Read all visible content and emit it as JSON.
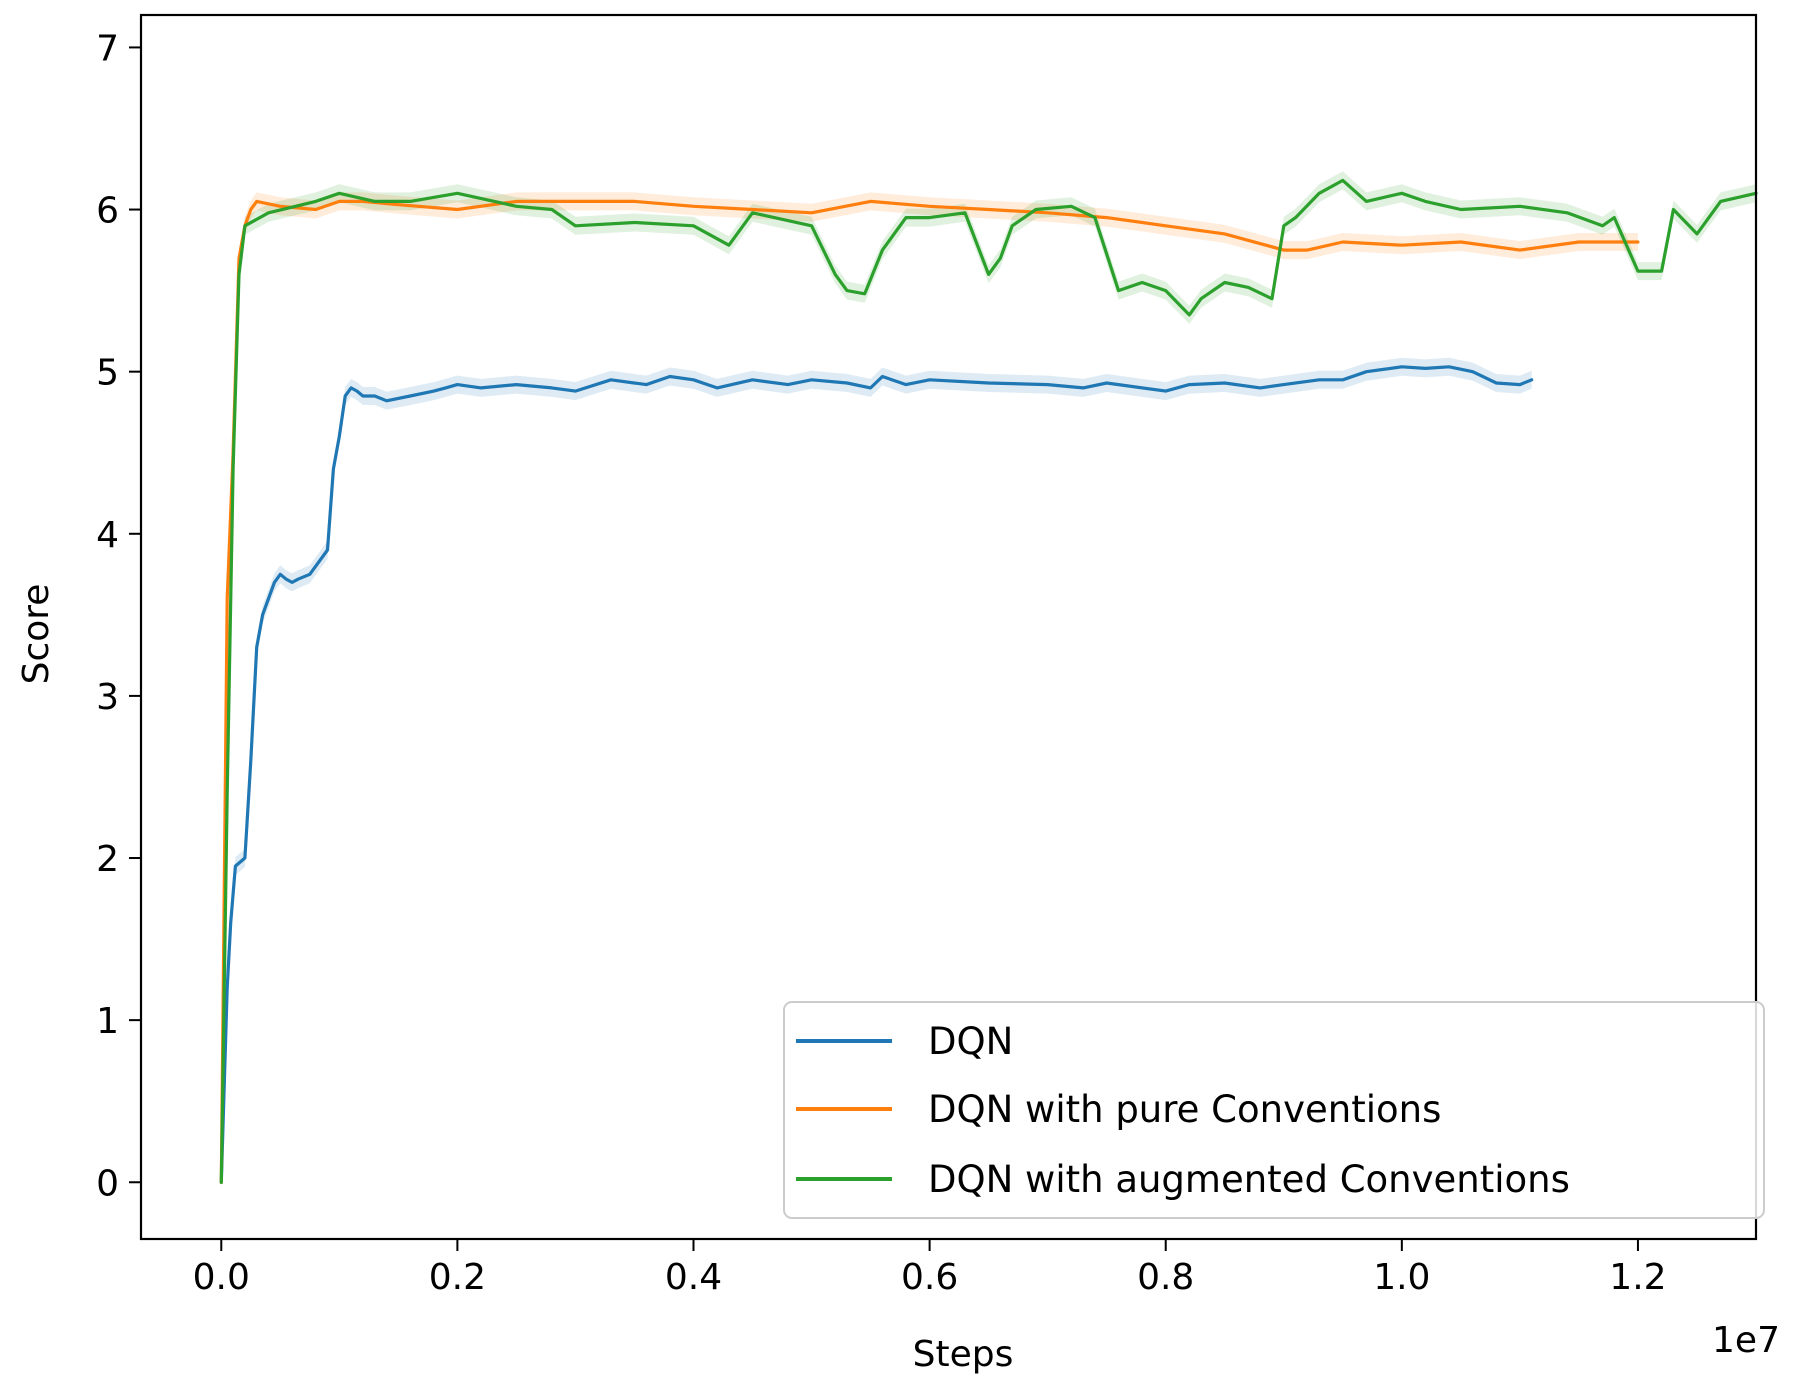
{
  "chart_data": {
    "type": "line",
    "title": "",
    "xlabel": "Steps",
    "ylabel": "Score",
    "x_offset_label": "1e7",
    "xlim": [
      -0.068,
      1.3
    ],
    "ylim": [
      -0.35,
      7.2
    ],
    "x_ticks": [
      0.0,
      0.2,
      0.4,
      0.6,
      0.8,
      1.0,
      1.2
    ],
    "x_tick_labels": [
      "0.0",
      "0.2",
      "0.4",
      "0.6",
      "0.8",
      "1.0",
      "1.2"
    ],
    "y_ticks": [
      0,
      1,
      2,
      3,
      4,
      5,
      6,
      7
    ],
    "y_tick_labels": [
      "0",
      "1",
      "2",
      "3",
      "4",
      "5",
      "6",
      "7"
    ],
    "grid": false,
    "legend_position": "bottom-right",
    "series": [
      {
        "name": "DQN",
        "color": "#1f77b4",
        "x": [
          0.0,
          0.005,
          0.008,
          0.012,
          0.02,
          0.025,
          0.03,
          0.035,
          0.045,
          0.05,
          0.055,
          0.06,
          0.065,
          0.075,
          0.09,
          0.095,
          0.1,
          0.105,
          0.11,
          0.115,
          0.12,
          0.13,
          0.14,
          0.16,
          0.18,
          0.19,
          0.2,
          0.22,
          0.25,
          0.28,
          0.3,
          0.33,
          0.36,
          0.38,
          0.4,
          0.42,
          0.45,
          0.48,
          0.5,
          0.53,
          0.55,
          0.56,
          0.58,
          0.6,
          0.65,
          0.7,
          0.73,
          0.75,
          0.8,
          0.82,
          0.85,
          0.88,
          0.9,
          0.93,
          0.95,
          0.97,
          1.0,
          1.02,
          1.04,
          1.06,
          1.08,
          1.1,
          1.11
        ],
        "y": [
          0.0,
          1.2,
          1.6,
          1.95,
          2.0,
          2.6,
          3.3,
          3.5,
          3.7,
          3.75,
          3.72,
          3.7,
          3.72,
          3.75,
          3.9,
          4.4,
          4.6,
          4.85,
          4.9,
          4.88,
          4.85,
          4.85,
          4.82,
          4.85,
          4.88,
          4.9,
          4.92,
          4.9,
          4.92,
          4.9,
          4.88,
          4.95,
          4.92,
          4.97,
          4.95,
          4.9,
          4.95,
          4.92,
          4.95,
          4.93,
          4.9,
          4.97,
          4.92,
          4.95,
          4.93,
          4.92,
          4.9,
          4.93,
          4.88,
          4.92,
          4.93,
          4.9,
          4.92,
          4.95,
          4.95,
          5.0,
          5.03,
          5.02,
          5.03,
          5.0,
          4.93,
          4.92,
          4.95
        ]
      },
      {
        "name": "DQN with pure Conventions",
        "color": "#ff7f0e",
        "x": [
          0.0,
          0.005,
          0.01,
          0.015,
          0.02,
          0.025,
          0.03,
          0.05,
          0.08,
          0.1,
          0.12,
          0.15,
          0.2,
          0.25,
          0.3,
          0.35,
          0.4,
          0.45,
          0.5,
          0.55,
          0.6,
          0.65,
          0.7,
          0.75,
          0.8,
          0.85,
          0.9,
          0.92,
          0.95,
          1.0,
          1.05,
          1.1,
          1.15,
          1.2
        ],
        "y": [
          0.0,
          3.6,
          4.5,
          5.7,
          5.9,
          6.0,
          6.05,
          6.02,
          6.0,
          6.05,
          6.05,
          6.03,
          6.0,
          6.05,
          6.05,
          6.05,
          6.02,
          6.0,
          5.98,
          6.05,
          6.02,
          6.0,
          5.98,
          5.95,
          5.9,
          5.85,
          5.75,
          5.75,
          5.8,
          5.78,
          5.8,
          5.75,
          5.8,
          5.8
        ]
      },
      {
        "name": "DQN with augmented Conventions",
        "color": "#2ca02c",
        "x": [
          0.0,
          0.005,
          0.01,
          0.015,
          0.02,
          0.04,
          0.08,
          0.1,
          0.13,
          0.16,
          0.2,
          0.25,
          0.28,
          0.3,
          0.35,
          0.4,
          0.43,
          0.45,
          0.5,
          0.52,
          0.53,
          0.545,
          0.56,
          0.58,
          0.6,
          0.63,
          0.65,
          0.66,
          0.67,
          0.69,
          0.72,
          0.74,
          0.76,
          0.78,
          0.8,
          0.82,
          0.83,
          0.85,
          0.87,
          0.89,
          0.9,
          0.91,
          0.93,
          0.95,
          0.97,
          1.0,
          1.02,
          1.05,
          1.1,
          1.14,
          1.17,
          1.18,
          1.2,
          1.22,
          1.23,
          1.25,
          1.27,
          1.3
        ],
        "y": [
          0.0,
          2.4,
          4.4,
          5.6,
          5.9,
          5.98,
          6.05,
          6.1,
          6.05,
          6.05,
          6.1,
          6.02,
          6.0,
          5.9,
          5.92,
          5.9,
          5.78,
          5.98,
          5.9,
          5.6,
          5.5,
          5.48,
          5.75,
          5.95,
          5.95,
          5.98,
          5.6,
          5.7,
          5.9,
          6.0,
          6.02,
          5.95,
          5.5,
          5.55,
          5.5,
          5.35,
          5.45,
          5.55,
          5.52,
          5.45,
          5.9,
          5.95,
          6.1,
          6.18,
          6.05,
          6.1,
          6.05,
          6.0,
          6.02,
          5.98,
          5.9,
          5.95,
          5.62,
          5.62,
          6.0,
          5.85,
          6.05,
          6.1
        ]
      }
    ]
  }
}
